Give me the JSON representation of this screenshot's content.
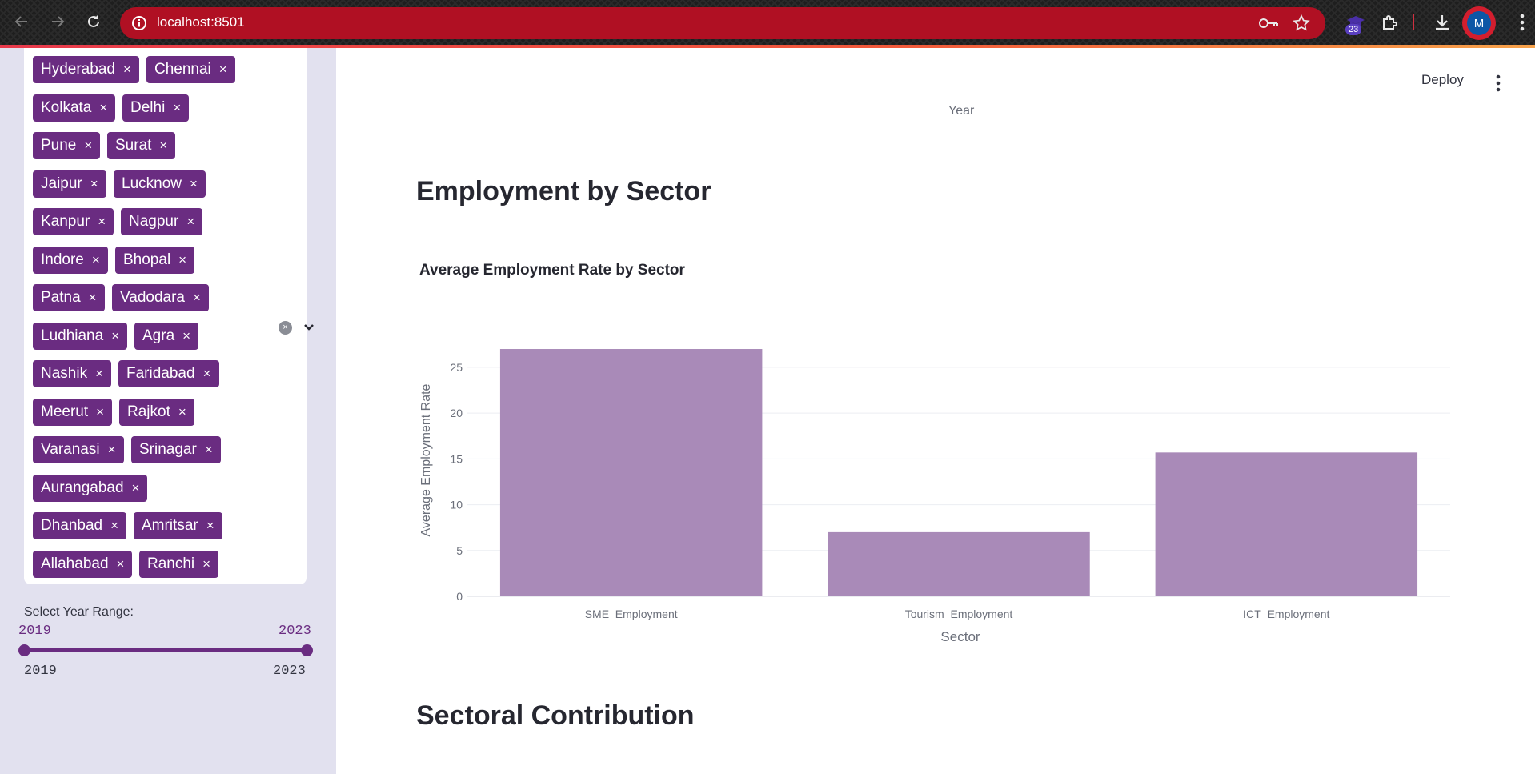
{
  "browser": {
    "url": "localhost:8501",
    "extension_badge": "23",
    "profile_initial": "M"
  },
  "sidebar": {
    "cities": [
      "Hyderabad",
      "Chennai",
      "Kolkata",
      "Delhi",
      "Pune",
      "Surat",
      "Jaipur",
      "Lucknow",
      "Kanpur",
      "Nagpur",
      "Indore",
      "Bhopal",
      "Patna",
      "Vadodara",
      "Ludhiana",
      "Agra",
      "Nashik",
      "Faridabad",
      "Meerut",
      "Rajkot",
      "Varanasi",
      "Srinagar",
      "Aurangabad",
      "Dhanbad",
      "Amritsar",
      "Allahabad",
      "Ranchi"
    ],
    "chip_close": "×",
    "clear_icon": "×",
    "year_range_label": "Select Year Range:",
    "year_min": "2019",
    "year_max": "2023",
    "year_selected_start": "2019",
    "year_selected_end": "2023"
  },
  "main": {
    "deploy_label": "Deploy",
    "year_axis_label": "Year",
    "section1_title": "Employment by Sector",
    "section2_title": "Sectoral Contribution"
  },
  "colors": {
    "primary": "#6a2c81",
    "bar": "#a98ab8",
    "urlbar": "#b01023",
    "sidebar_bg": "#e2e1ef"
  },
  "chart_data": {
    "type": "bar",
    "title": "Average Employment Rate by Sector",
    "xlabel": "Sector",
    "ylabel": "Average Employment Rate",
    "categories": [
      "SME_Employment",
      "Tourism_Employment",
      "ICT_Employment"
    ],
    "values": [
      27.0,
      7.0,
      15.7
    ],
    "yticks": [
      0,
      5,
      10,
      15,
      20,
      25
    ],
    "ylim": [
      0,
      28.4
    ],
    "grid": true
  }
}
